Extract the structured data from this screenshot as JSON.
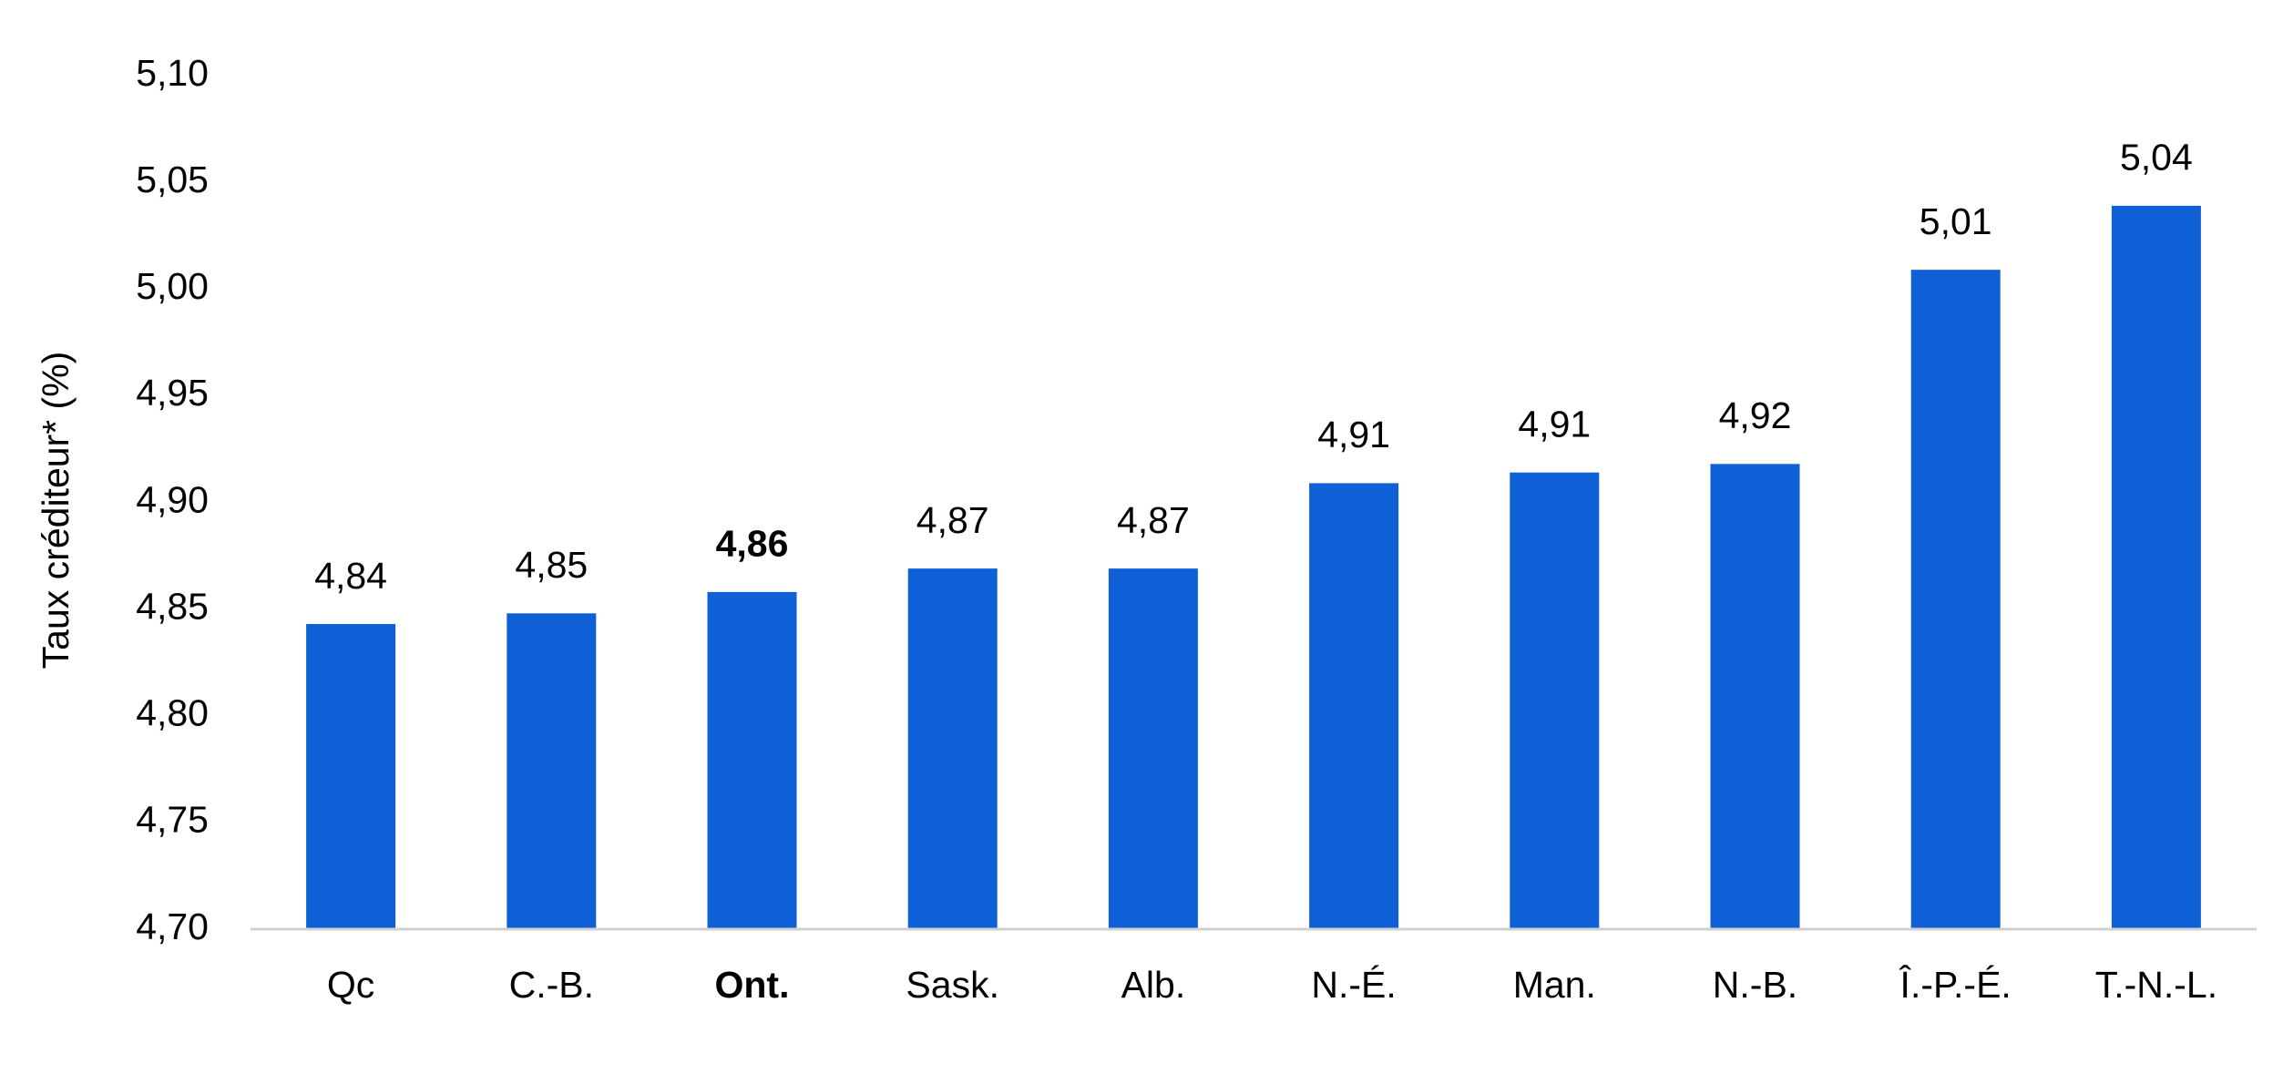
{
  "chart_data": {
    "type": "bar",
    "y_label": "Taux créditeur* (%)",
    "categories": [
      "Qc",
      "C.-B.",
      "Ont.",
      "Sask.",
      "Alb.",
      "N.-É.",
      "Man.",
      "N.-B.",
      "Î.-P.-É.",
      "T.-N.-L."
    ],
    "values": [
      4.843,
      4.848,
      4.858,
      4.869,
      4.869,
      4.909,
      4.914,
      4.918,
      5.009,
      5.039
    ],
    "value_labels": [
      "4,84",
      "4,85",
      "4,86",
      "4,87",
      "4,87",
      "4,91",
      "4,91",
      "4,92",
      "5,01",
      "5,04"
    ],
    "color": "#0f5fd6",
    "highlight_index": 2,
    "ylim": [
      4.7,
      5.1
    ],
    "yticks": [
      {
        "value": 4.7,
        "label": "4,70"
      },
      {
        "value": 4.75,
        "label": "4,75"
      },
      {
        "value": 4.8,
        "label": "4,80"
      },
      {
        "value": 4.85,
        "label": "4,85"
      },
      {
        "value": 4.9,
        "label": "4,90"
      },
      {
        "value": 4.95,
        "label": "4,95"
      },
      {
        "value": 5.0,
        "label": "5,00"
      },
      {
        "value": 5.05,
        "label": "5,05"
      },
      {
        "value": 5.1,
        "label": "5,10"
      }
    ],
    "grid": false
  }
}
